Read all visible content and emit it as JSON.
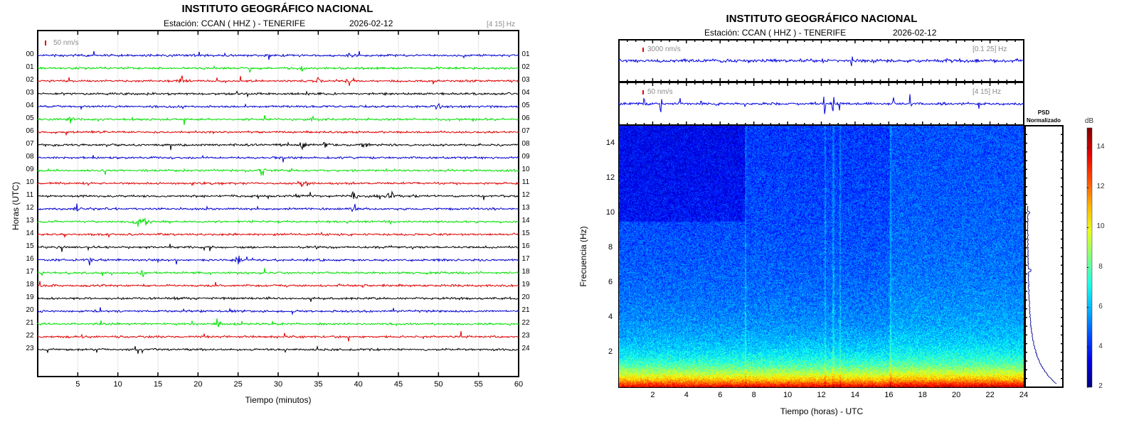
{
  "chart_data": [
    {
      "type": "line",
      "title": "INSTITUTO GEOGRÁFICO NACIONAL",
      "subtitle_station": "Estación:  CCAN ( HHZ ) - TENERIFE",
      "subtitle_date": "2026-02-12",
      "filter_label": "[4 15] Hz",
      "scale_label": "50 nm/s",
      "xlabel": "Tiempo (minutos)",
      "ylabel": "Horas (UTC)",
      "xlim": [
        0,
        60
      ],
      "xticks": [
        "5",
        "10",
        "15",
        "20",
        "25",
        "30",
        "35",
        "40",
        "45",
        "50",
        "55",
        "60"
      ],
      "left_labels": [
        "00",
        "01",
        "02",
        "03",
        "04",
        "05",
        "06",
        "07",
        "08",
        "09",
        "10",
        "11",
        "12",
        "13",
        "14",
        "15",
        "16",
        "17",
        "18",
        "19",
        "20",
        "21",
        "22",
        "23"
      ],
      "right_labels": [
        "01",
        "02",
        "03",
        "04",
        "05",
        "06",
        "07",
        "08",
        "09",
        "10",
        "11",
        "12",
        "13",
        "14",
        "15",
        "16",
        "17",
        "18",
        "19",
        "20",
        "21",
        "22",
        "23",
        "24"
      ],
      "trace_colors": [
        "#0000d0",
        "#00e000",
        "#e00000",
        "#000000"
      ],
      "events": [
        {
          "hour": 0,
          "minute": 39
        },
        {
          "hour": 1,
          "minute": 33
        },
        {
          "hour": 2,
          "minute": 18
        },
        {
          "hour": 2,
          "minute": 35
        },
        {
          "hour": 2,
          "minute": 39
        },
        {
          "hour": 4,
          "minute": 50
        },
        {
          "hour": 5,
          "minute": 4
        },
        {
          "hour": 7,
          "minute": 33
        },
        {
          "hour": 7,
          "minute": 36
        },
        {
          "hour": 7,
          "minute": 41
        },
        {
          "hour": 9,
          "minute": 28
        },
        {
          "hour": 10,
          "minute": 33
        },
        {
          "hour": 11,
          "minute": 39.5
        },
        {
          "hour": 11,
          "minute": 44
        },
        {
          "hour": 12,
          "minute": 5
        },
        {
          "hour": 12,
          "minute": 39.5
        },
        {
          "hour": 13,
          "minute": 12.5
        },
        {
          "hour": 13,
          "minute": 13.5
        },
        {
          "hour": 13,
          "minute": 38.5
        },
        {
          "hour": 16,
          "minute": 6.5
        },
        {
          "hour": 16,
          "minute": 25
        },
        {
          "hour": 17,
          "minute": 13
        },
        {
          "hour": 21,
          "minute": 22.5
        }
      ]
    },
    {
      "type": "heatmap",
      "title": "INSTITUTO GEOGRÁFICO NACIONAL",
      "subtitle_station": "Estación:  CCAN ( HHZ ) - TENERIFE",
      "subtitle_date": "2026-02-12",
      "top_trace": {
        "scale_label": "3000 nm/s",
        "filter_label": "[0.1 25] Hz"
      },
      "mid_trace": {
        "scale_label": "50 nm/s",
        "filter_label": "[4 15] Hz"
      },
      "xlabel": "Tiempo (horas) - UTC",
      "ylabel": "Frecuencia  (Hz)",
      "xlim": [
        0,
        24
      ],
      "ylim": [
        0,
        15
      ],
      "xticks": [
        "2",
        "4",
        "6",
        "8",
        "10",
        "12",
        "14",
        "16",
        "18",
        "20",
        "22",
        "24"
      ],
      "yticks": [
        "2",
        "4",
        "6",
        "8",
        "10",
        "12",
        "14"
      ],
      "psd_title_1": "PSD",
      "psd_title_2": "Normalizado",
      "colorbar": {
        "label": "dB",
        "range": [
          2,
          15
        ],
        "ticks": [
          "2",
          "4",
          "6",
          "8",
          "10",
          "12",
          "14"
        ],
        "colormap": "jet"
      }
    }
  ]
}
